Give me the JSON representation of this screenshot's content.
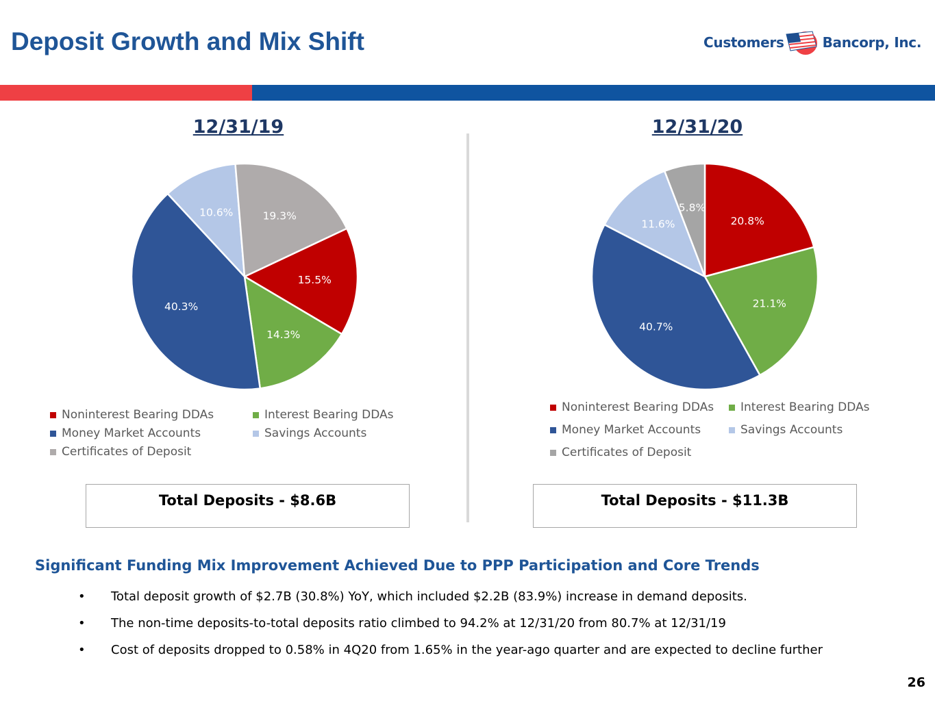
{
  "header": {
    "title": "Deposit Growth and Mix Shift",
    "logo_left": "Customers",
    "logo_right": "Bancorp, Inc."
  },
  "colors": {
    "red": "#c00000",
    "green": "#70ad47",
    "blue": "#2f5597",
    "light_blue": "#b4c7e7",
    "gray": "#a5a5a5",
    "gray_2019": "#afabab",
    "accent_red": "#ef4044",
    "accent_blue": "#0f54a0",
    "title_blue": "#1f5597"
  },
  "chart_data": [
    {
      "type": "pie",
      "title": "12/31/19",
      "categories": [
        "Noninterest Bearing DDAs",
        "Interest Bearing DDAs",
        "Money Market Accounts",
        "Savings Accounts",
        "Certificates of Deposit"
      ],
      "values": [
        15.5,
        14.3,
        40.3,
        10.6,
        19.3
      ],
      "labels": [
        "15.5%",
        "14.3%",
        "40.3%",
        "10.6%",
        "19.3%"
      ],
      "colors": [
        "#c00000",
        "#70ad47",
        "#2f5597",
        "#b4c7e7",
        "#afabab"
      ],
      "start_angle_deg": 64.8,
      "legend": "bottom",
      "total_label": "Total Deposits - $8.6B"
    },
    {
      "type": "pie",
      "title": "12/31/20",
      "categories": [
        "Noninterest Bearing DDAs",
        "Interest Bearing DDAs",
        "Money Market Accounts",
        "Savings Accounts",
        "Certificates of Deposit"
      ],
      "values": [
        20.8,
        21.1,
        40.7,
        11.6,
        5.8
      ],
      "labels": [
        "20.8%",
        "21.1%",
        "40.7%",
        "11.6%",
        "5.8%"
      ],
      "colors": [
        "#c00000",
        "#70ad47",
        "#2f5597",
        "#b4c7e7",
        "#a5a5a5"
      ],
      "start_angle_deg": 0,
      "legend": "bottom",
      "total_label": "Total Deposits - $11.3B"
    }
  ],
  "summary": {
    "headline": "Significant Funding Mix Improvement Achieved Due to PPP Participation and Core Trends",
    "bullet_char": "•",
    "bullets": [
      "Total deposit growth of $2.7B (30.8%) YoY, which included $2.2B (83.9%) increase in demand deposits.",
      "The non-time deposits-to-total deposits ratio climbed to 94.2% at 12/31/20 from 80.7% at 12/31/19",
      "Cost of deposits dropped to 0.58% in 4Q20 from 1.65% in the year-ago quarter and are expected to decline further"
    ]
  },
  "page_number": "26"
}
